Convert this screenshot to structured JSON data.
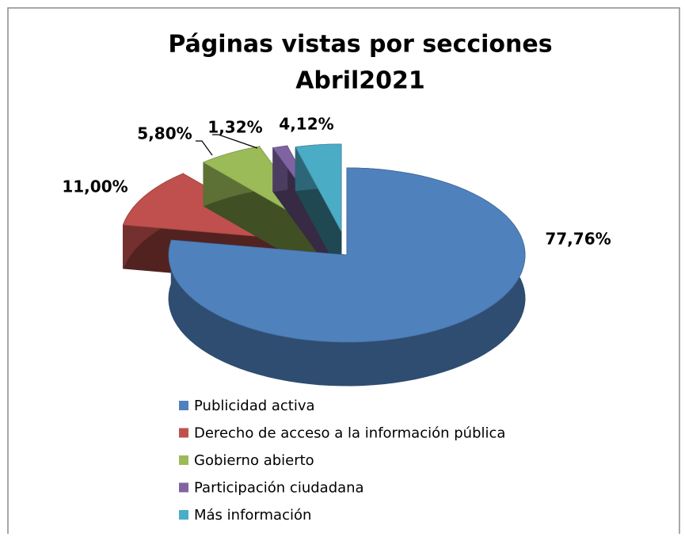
{
  "chart_data": {
    "type": "pie",
    "title": "Páginas vistas por secciones",
    "subtitle": "Abril2021",
    "categories": [
      "Publicidad activa",
      "Derecho de acceso a la información pública",
      "Gobierno abierto",
      "Participación ciudadana",
      "Más información"
    ],
    "values": [
      77.76,
      11.0,
      5.8,
      1.32,
      4.12
    ],
    "value_labels": [
      "77,76%",
      "11,00%",
      "5,80%",
      "1,32%",
      "4,12%"
    ],
    "colors": [
      "#4f81bd",
      "#c0504d",
      "#9bbb59",
      "#8064a2",
      "#4bacc6"
    ],
    "legend": "bottom"
  }
}
